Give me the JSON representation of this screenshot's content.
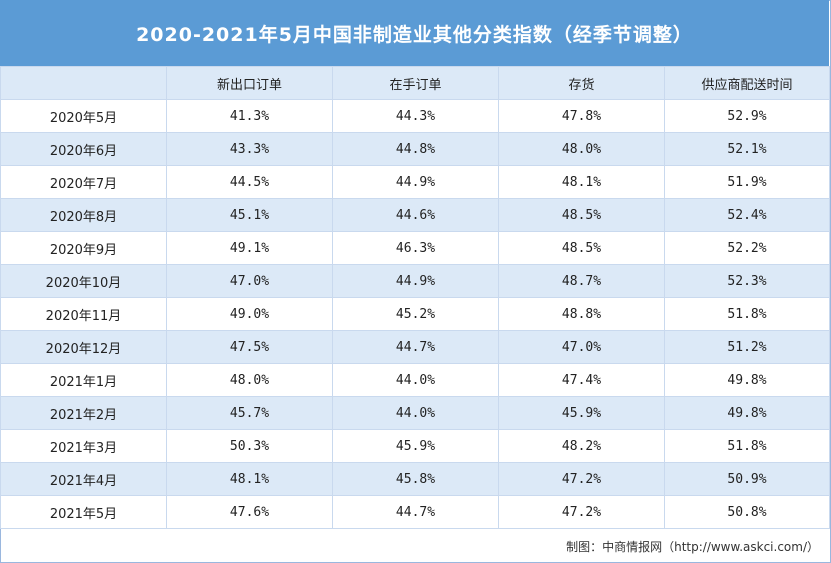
{
  "chart_data": {
    "type": "table",
    "title": "2020-2021年5月中国非制造业其他分类指数（经季节调整）",
    "columns": [
      "",
      "新出口订单",
      "在手订单",
      "存货",
      "供应商配送时间"
    ],
    "rows": [
      {
        "period": "2020年5月",
        "values": [
          "41.3%",
          "44.3%",
          "47.8%",
          "52.9%"
        ]
      },
      {
        "period": "2020年6月",
        "values": [
          "43.3%",
          "44.8%",
          "48.0%",
          "52.1%"
        ]
      },
      {
        "period": "2020年7月",
        "values": [
          "44.5%",
          "44.9%",
          "48.1%",
          "51.9%"
        ]
      },
      {
        "period": "2020年8月",
        "values": [
          "45.1%",
          "44.6%",
          "48.5%",
          "52.4%"
        ]
      },
      {
        "period": "2020年9月",
        "values": [
          "49.1%",
          "46.3%",
          "48.5%",
          "52.2%"
        ]
      },
      {
        "period": "2020年10月",
        "values": [
          "47.0%",
          "44.9%",
          "48.7%",
          "52.3%"
        ]
      },
      {
        "period": "2020年11月",
        "values": [
          "49.0%",
          "45.2%",
          "48.8%",
          "51.8%"
        ]
      },
      {
        "period": "2020年12月",
        "values": [
          "47.5%",
          "44.7%",
          "47.0%",
          "51.2%"
        ]
      },
      {
        "period": "2021年1月",
        "values": [
          "48.0%",
          "44.0%",
          "47.4%",
          "49.8%"
        ]
      },
      {
        "period": "2021年2月",
        "values": [
          "45.7%",
          "44.0%",
          "45.9%",
          "49.8%"
        ]
      },
      {
        "period": "2021年3月",
        "values": [
          "50.3%",
          "45.9%",
          "48.2%",
          "51.8%"
        ]
      },
      {
        "period": "2021年4月",
        "values": [
          "48.1%",
          "45.8%",
          "47.2%",
          "50.9%"
        ]
      },
      {
        "period": "2021年5月",
        "values": [
          "47.6%",
          "44.7%",
          "47.2%",
          "50.8%"
        ]
      }
    ],
    "source": "制图：中商情报网（http://www.askci.com/）"
  },
  "colors": {
    "title_bg": "#5b9bd5",
    "stripe": "#dce9f7",
    "border": "#c9d9ee"
  }
}
